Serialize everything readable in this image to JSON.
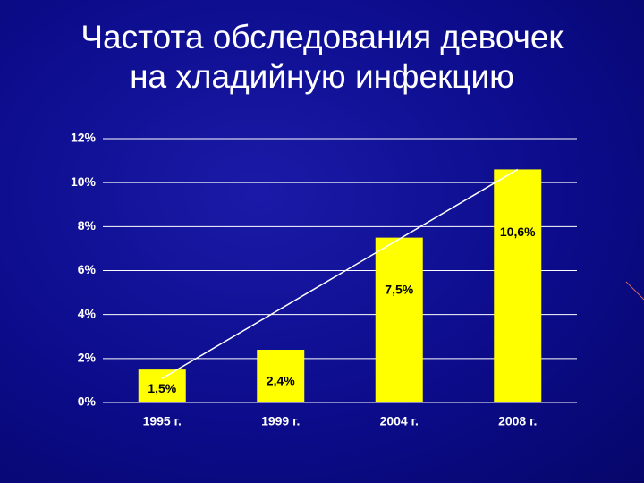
{
  "chart_data": {
    "type": "bar",
    "title": "Частота обследования девочек\nна хладийную инфекцию",
    "categories": [
      "1995 г.",
      "1999 г.",
      "2004 г.",
      "2008 г."
    ],
    "values": [
      1.5,
      2.4,
      7.5,
      10.6
    ],
    "value_labels": [
      "1,5%",
      "2,4%",
      "7,5%",
      "10,6%"
    ],
    "color": "#ffff00",
    "ylim": [
      0,
      12
    ],
    "yticks": [
      {
        "value": 0,
        "label": "0%"
      },
      {
        "value": 2,
        "label": "2%"
      },
      {
        "value": 4,
        "label": "4%"
      },
      {
        "value": 6,
        "label": "6%"
      },
      {
        "value": 8,
        "label": "8%"
      },
      {
        "value": 10,
        "label": "10%"
      },
      {
        "value": 12,
        "label": "12%"
      }
    ],
    "grid": true
  }
}
